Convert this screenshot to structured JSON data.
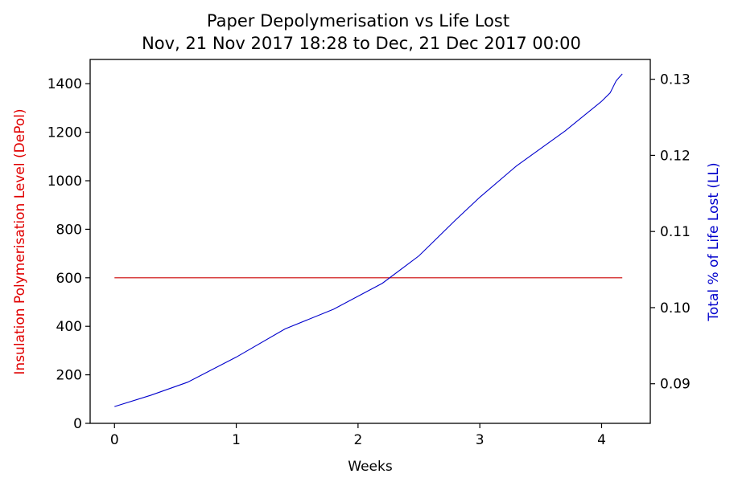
{
  "chart_data": {
    "type": "line",
    "title": "Paper Depolymerisation vs Life Lost",
    "subtitle": "Nov, 21 Nov 2017 18:28 to Dec, 21 Dec 2017 00:00",
    "xlabel": "Weeks",
    "ylabel_left": "Insulation Polymerisation Level (DePol)",
    "ylabel_right": "Total % of Life Lost (LL)",
    "xlim": [
      -0.2,
      4.4
    ],
    "ylim_left": [
      0,
      1500
    ],
    "ylim_right": [
      0.0848,
      0.1326
    ],
    "x_ticks": [
      0,
      1,
      2,
      3,
      4
    ],
    "y_ticks_left": [
      0,
      200,
      400,
      600,
      800,
      1000,
      1200,
      1400
    ],
    "y_ticks_right": [
      0.09,
      0.1,
      0.11,
      0.12,
      0.13
    ],
    "y_tick_labels_right": [
      "0.09",
      "0.10",
      "0.11",
      "0.12",
      "0.13"
    ],
    "grid": false,
    "colors": {
      "depol": "#cc0000",
      "life_lost": "#0000cc",
      "left_label": "#e00000",
      "right_label": "#0000cc"
    },
    "series": [
      {
        "axis": "left",
        "x": [
          0,
          4.17
        ],
        "y": [
          600,
          600
        ]
      },
      {
        "axis": "right",
        "x": [
          0,
          0.3,
          0.6,
          1.0,
          1.4,
          1.8,
          2.2,
          2.5,
          2.8,
          3.0,
          3.3,
          3.7,
          4.0,
          4.07,
          4.12,
          4.17
        ],
        "y": [
          0.087,
          0.0885,
          0.0902,
          0.0935,
          0.0972,
          0.0998,
          0.1032,
          0.1068,
          0.1115,
          0.1145,
          0.1186,
          0.1232,
          0.1271,
          0.1282,
          0.1298,
          0.1307
        ]
      }
    ]
  }
}
